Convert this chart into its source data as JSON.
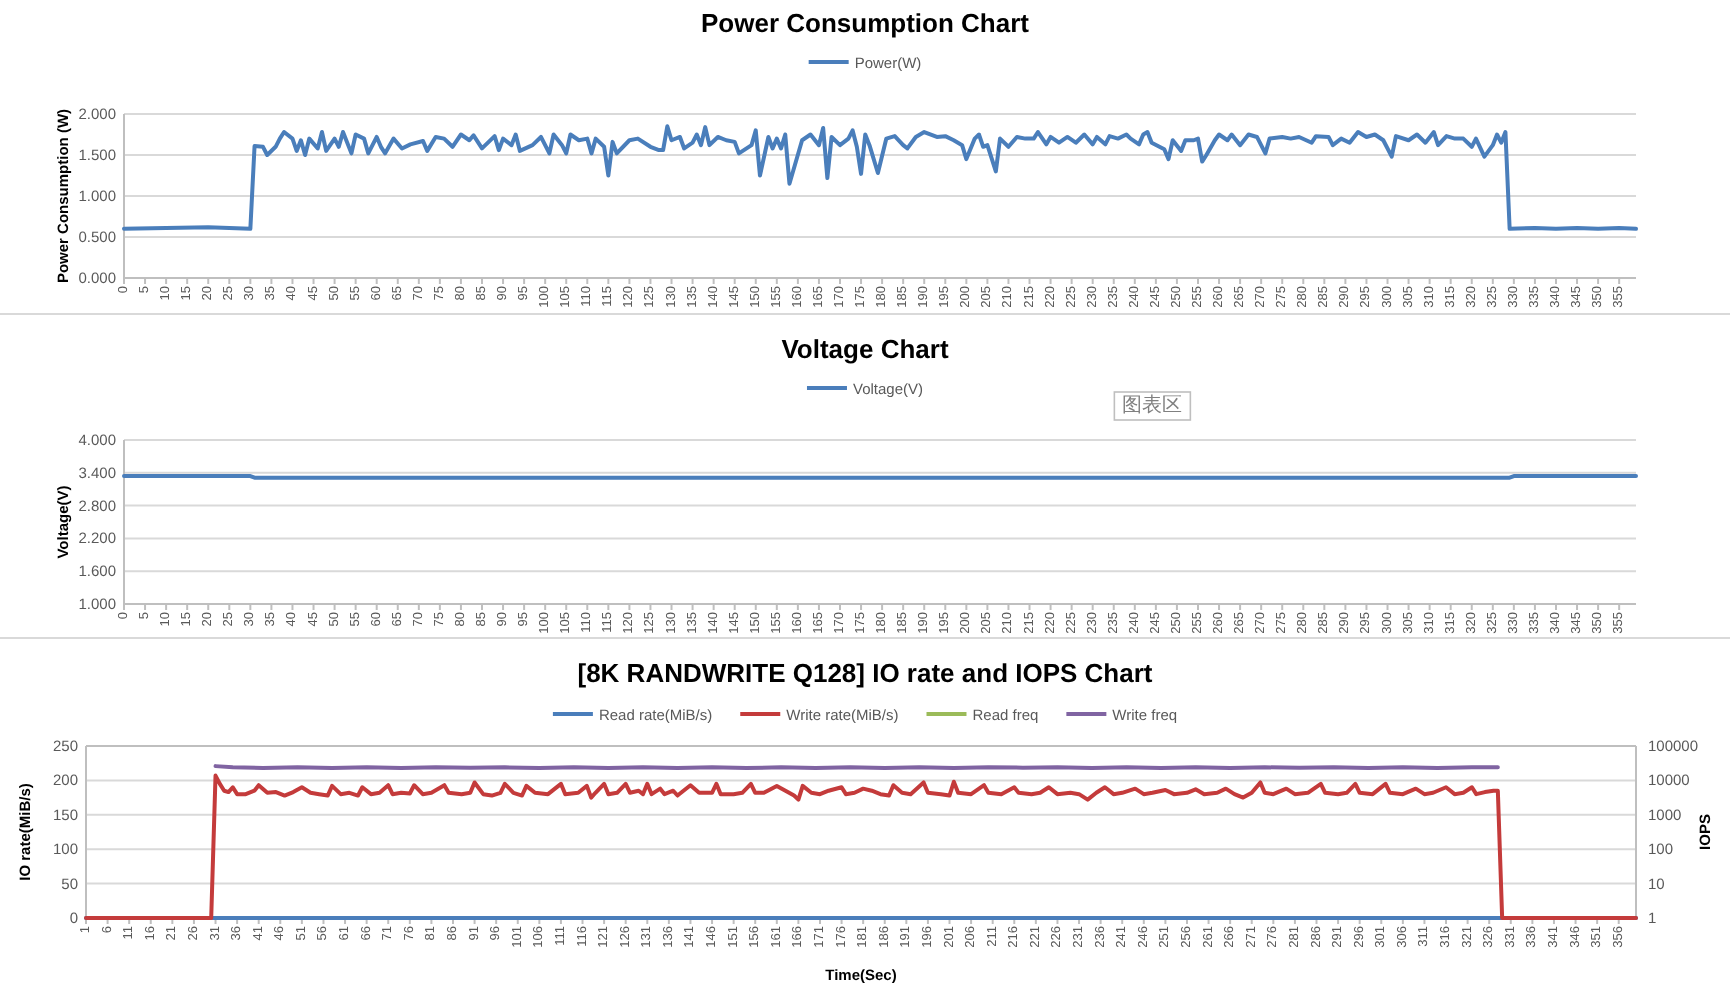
{
  "chart_data": [
    {
      "type": "line",
      "title": "Power Consumption Chart",
      "ylabel": "Power Consumption (W)",
      "legend": "top",
      "grid": "y",
      "xlim": [
        0,
        359
      ],
      "xticks": [
        0,
        5,
        10,
        15,
        20,
        25,
        30,
        35,
        40,
        45,
        50,
        55,
        60,
        65,
        70,
        75,
        80,
        85,
        90,
        95,
        100,
        105,
        110,
        115,
        120,
        125,
        130,
        135,
        140,
        145,
        150,
        155,
        160,
        165,
        170,
        175,
        180,
        185,
        190,
        195,
        200,
        205,
        210,
        215,
        220,
        225,
        230,
        235,
        240,
        245,
        250,
        255,
        260,
        265,
        270,
        275,
        280,
        285,
        290,
        295,
        300,
        305,
        310,
        315,
        320,
        325,
        330,
        335,
        340,
        345,
        350,
        355
      ],
      "ylim": [
        0,
        2
      ],
      "yticks": [
        {
          "value": 0,
          "label": "0.000"
        },
        {
          "value": 0.5,
          "label": "0.500"
        },
        {
          "value": 1,
          "label": "1.000"
        },
        {
          "value": 1.5,
          "label": "1.500"
        },
        {
          "value": 2,
          "label": "2.000"
        }
      ],
      "series": [
        {
          "name": "Power(W)",
          "color": "#4a7ebb",
          "x": [
            0,
            10,
            20,
            30,
            31,
            33,
            34,
            36,
            37,
            38,
            40,
            41,
            42,
            43,
            44,
            46,
            47,
            48,
            50,
            51,
            52,
            54,
            55,
            57,
            58,
            60,
            61,
            62,
            64,
            66,
            68,
            71,
            72,
            74,
            76,
            78,
            80,
            82,
            83,
            85,
            88,
            89,
            90,
            92,
            93,
            94,
            97,
            99,
            101,
            102,
            104,
            105,
            106,
            108,
            110,
            111,
            112,
            114,
            115,
            116,
            117,
            120,
            122,
            125,
            127,
            128,
            129,
            130,
            132,
            133,
            135,
            136,
            137,
            138,
            139,
            141,
            143,
            145,
            146,
            149,
            150,
            151,
            153,
            154,
            155,
            156,
            157,
            158,
            161,
            163,
            165,
            166,
            167,
            168,
            170,
            172,
            173,
            174,
            175,
            176,
            177,
            179,
            181,
            183,
            185,
            186,
            188,
            190,
            193,
            195,
            197,
            199,
            200,
            202,
            203,
            204,
            205,
            207,
            208,
            210,
            212,
            214,
            216,
            217,
            219,
            220,
            222,
            224,
            226,
            228,
            230,
            231,
            233,
            234,
            236,
            238,
            239,
            241,
            242,
            243,
            244,
            247,
            248,
            249,
            251,
            252,
            254,
            255,
            256,
            257,
            259,
            260,
            262,
            263,
            265,
            267,
            269,
            270,
            271,
            272,
            275,
            277,
            279,
            282,
            283,
            286,
            287,
            289,
            291,
            293,
            295,
            297,
            299,
            301,
            302,
            305,
            307,
            309,
            311,
            312,
            314,
            316,
            318,
            320,
            321,
            323,
            325,
            326,
            327,
            328,
            329,
            335,
            340,
            345,
            350,
            355,
            359
          ],
          "values": [
            0.6,
            0.61,
            0.62,
            0.6,
            1.61,
            1.6,
            1.5,
            1.6,
            1.7,
            1.78,
            1.7,
            1.55,
            1.68,
            1.5,
            1.7,
            1.58,
            1.78,
            1.55,
            1.7,
            1.6,
            1.78,
            1.52,
            1.75,
            1.7,
            1.52,
            1.72,
            1.6,
            1.52,
            1.7,
            1.58,
            1.63,
            1.67,
            1.55,
            1.72,
            1.7,
            1.6,
            1.75,
            1.68,
            1.74,
            1.58,
            1.73,
            1.56,
            1.7,
            1.62,
            1.75,
            1.55,
            1.62,
            1.72,
            1.52,
            1.75,
            1.62,
            1.52,
            1.75,
            1.68,
            1.7,
            1.52,
            1.7,
            1.6,
            1.25,
            1.66,
            1.52,
            1.68,
            1.7,
            1.6,
            1.56,
            1.56,
            1.85,
            1.68,
            1.72,
            1.58,
            1.65,
            1.75,
            1.62,
            1.84,
            1.62,
            1.72,
            1.68,
            1.66,
            1.52,
            1.62,
            1.8,
            1.25,
            1.72,
            1.58,
            1.7,
            1.58,
            1.75,
            1.15,
            1.68,
            1.75,
            1.62,
            1.83,
            1.22,
            1.72,
            1.62,
            1.7,
            1.8,
            1.6,
            1.27,
            1.75,
            1.62,
            1.28,
            1.7,
            1.73,
            1.62,
            1.58,
            1.72,
            1.78,
            1.72,
            1.73,
            1.68,
            1.62,
            1.45,
            1.7,
            1.75,
            1.6,
            1.62,
            1.3,
            1.7,
            1.6,
            1.72,
            1.7,
            1.7,
            1.78,
            1.63,
            1.72,
            1.65,
            1.72,
            1.65,
            1.75,
            1.63,
            1.72,
            1.63,
            1.73,
            1.7,
            1.75,
            1.7,
            1.63,
            1.75,
            1.78,
            1.65,
            1.57,
            1.45,
            1.68,
            1.55,
            1.68,
            1.68,
            1.7,
            1.42,
            1.5,
            1.68,
            1.75,
            1.68,
            1.75,
            1.62,
            1.75,
            1.72,
            1.62,
            1.52,
            1.7,
            1.72,
            1.7,
            1.72,
            1.65,
            1.73,
            1.72,
            1.62,
            1.7,
            1.65,
            1.78,
            1.72,
            1.75,
            1.68,
            1.48,
            1.73,
            1.68,
            1.75,
            1.65,
            1.78,
            1.62,
            1.73,
            1.7,
            1.7,
            1.6,
            1.7,
            1.48,
            1.62,
            1.75,
            1.65,
            1.78,
            0.6,
            0.61,
            0.6,
            0.61,
            0.6,
            0.61,
            0.6
          ]
        }
      ]
    },
    {
      "type": "line",
      "title": "Voltage Chart",
      "ylabel": "Voltage(V)",
      "legend": "top",
      "grid": "y",
      "annotations": [
        "图表区"
      ],
      "xlim": [
        0,
        359
      ],
      "xticks": [
        0,
        5,
        10,
        15,
        20,
        25,
        30,
        35,
        40,
        45,
        50,
        55,
        60,
        65,
        70,
        75,
        80,
        85,
        90,
        95,
        100,
        105,
        110,
        115,
        120,
        125,
        130,
        135,
        140,
        145,
        150,
        155,
        160,
        165,
        170,
        175,
        180,
        185,
        190,
        195,
        200,
        205,
        210,
        215,
        220,
        225,
        230,
        235,
        240,
        245,
        250,
        255,
        260,
        265,
        270,
        275,
        280,
        285,
        290,
        295,
        300,
        305,
        310,
        315,
        320,
        325,
        330,
        335,
        340,
        345,
        350,
        355
      ],
      "ylim": [
        1,
        4
      ],
      "yticks": [
        {
          "value": 1,
          "label": "1.000"
        },
        {
          "value": 1.6,
          "label": "1.600"
        },
        {
          "value": 2.2,
          "label": "2.200"
        },
        {
          "value": 2.8,
          "label": "2.800"
        },
        {
          "value": 3.4,
          "label": "3.400"
        },
        {
          "value": 4,
          "label": "4.000"
        }
      ],
      "series": [
        {
          "name": "Voltage(V)",
          "color": "#4a7ebb",
          "x": [
            0,
            30,
            31,
            329,
            330,
            359
          ],
          "values": [
            3.34,
            3.34,
            3.31,
            3.31,
            3.34,
            3.34
          ]
        }
      ]
    },
    {
      "type": "line",
      "title": "[8K RANDWRITE Q128] IO rate and IOPS Chart",
      "xlabel": "Time(Sec)",
      "ylabel": "IO rate(MiB/s)",
      "y2label": "IOPS",
      "legend": "top",
      "grid": "y",
      "log": "y2",
      "xlim": [
        1,
        360
      ],
      "xticks": [
        1,
        6,
        11,
        16,
        21,
        26,
        31,
        36,
        41,
        46,
        51,
        56,
        61,
        66,
        71,
        76,
        81,
        86,
        91,
        96,
        101,
        106,
        111,
        116,
        121,
        126,
        131,
        136,
        141,
        146,
        151,
        156,
        161,
        166,
        171,
        176,
        181,
        186,
        191,
        196,
        201,
        206,
        211,
        216,
        221,
        226,
        231,
        236,
        241,
        246,
        251,
        256,
        261,
        266,
        271,
        276,
        281,
        286,
        291,
        296,
        301,
        306,
        311,
        316,
        321,
        326,
        331,
        336,
        341,
        346,
        351,
        356
      ],
      "ylim": [
        0,
        250
      ],
      "yticks": [
        0,
        50,
        100,
        150,
        200,
        250
      ],
      "y2lim": [
        1,
        100000
      ],
      "y2ticks": [
        1,
        10,
        100,
        1000,
        10000,
        100000
      ],
      "series": [
        {
          "name": "Read rate(MiB/s)",
          "color": "#4a7ebb",
          "x": [
            1,
            360
          ],
          "values": [
            0,
            0
          ]
        },
        {
          "name": "Write rate(MiB/s)",
          "color": "#c43b3b",
          "x": [
            1,
            30,
            31,
            32,
            33,
            34,
            35,
            36,
            38,
            40,
            41,
            43,
            45,
            47,
            49,
            51,
            53,
            55,
            57,
            58,
            60,
            62,
            64,
            65,
            67,
            69,
            71,
            72,
            74,
            76,
            77,
            79,
            81,
            84,
            85,
            88,
            90,
            91,
            93,
            95,
            97,
            98,
            100,
            102,
            103,
            105,
            108,
            111,
            112,
            115,
            117,
            118,
            119,
            121,
            122,
            124,
            126,
            127,
            129,
            130,
            131,
            132,
            134,
            135,
            137,
            138,
            141,
            143,
            146,
            147,
            148,
            151,
            153,
            155,
            156,
            158,
            161,
            163,
            165,
            166,
            167,
            169,
            171,
            173,
            176,
            177,
            179,
            181,
            183,
            185,
            187,
            188,
            190,
            192,
            195,
            196,
            199,
            201,
            202,
            203,
            206,
            209,
            210,
            213,
            216,
            217,
            220,
            222,
            224,
            226,
            229,
            231,
            233,
            235,
            237,
            239,
            241,
            244,
            246,
            248,
            251,
            253,
            256,
            258,
            260,
            263,
            265,
            267,
            269,
            271,
            273,
            274,
            276,
            279,
            281,
            284,
            287,
            288,
            291,
            293,
            295,
            296,
            299,
            302,
            303,
            306,
            309,
            311,
            313,
            316,
            318,
            320,
            322,
            323,
            325,
            327,
            328,
            329,
            360
          ],
          "values": [
            0,
            0,
            207,
            195,
            185,
            183,
            190,
            180,
            180,
            185,
            193,
            182,
            183,
            178,
            183,
            190,
            182,
            180,
            178,
            192,
            180,
            182,
            178,
            190,
            180,
            182,
            193,
            180,
            182,
            181,
            193,
            180,
            182,
            193,
            182,
            180,
            182,
            197,
            180,
            178,
            182,
            195,
            182,
            178,
            192,
            182,
            180,
            195,
            180,
            182,
            192,
            175,
            182,
            195,
            180,
            182,
            195,
            182,
            185,
            180,
            195,
            180,
            188,
            180,
            185,
            178,
            193,
            182,
            182,
            195,
            180,
            180,
            182,
            195,
            182,
            182,
            192,
            185,
            178,
            172,
            192,
            182,
            180,
            185,
            190,
            180,
            182,
            188,
            185,
            180,
            178,
            193,
            182,
            180,
            197,
            182,
            180,
            178,
            198,
            182,
            180,
            193,
            182,
            180,
            190,
            182,
            180,
            182,
            190,
            180,
            182,
            180,
            172,
            182,
            190,
            180,
            182,
            188,
            180,
            182,
            186,
            180,
            182,
            187,
            180,
            182,
            188,
            180,
            175,
            182,
            197,
            182,
            180,
            188,
            180,
            182,
            195,
            182,
            180,
            182,
            195,
            182,
            180,
            195,
            182,
            180,
            188,
            180,
            182,
            190,
            180,
            182,
            190,
            180,
            183,
            185,
            185,
            0,
            0
          ]
        },
        {
          "name": "Read freq",
          "color": "#9bbb59",
          "axis": "y2"
        },
        {
          "name": "Write freq",
          "color": "#8064a2",
          "axis": "y2",
          "x": [
            31,
            35,
            42,
            50,
            58,
            66,
            74,
            82,
            90,
            98,
            106,
            114,
            122,
            130,
            138,
            146,
            154,
            162,
            170,
            178,
            186,
            194,
            202,
            210,
            218,
            226,
            234,
            242,
            250,
            258,
            266,
            274,
            282,
            290,
            298,
            306,
            314,
            322,
            328
          ],
          "values": [
            26000,
            24000,
            23000,
            24000,
            23000,
            24000,
            23000,
            24000,
            23500,
            24000,
            23000,
            24000,
            23000,
            24000,
            23000,
            24000,
            23000,
            24000,
            23000,
            24000,
            23000,
            24000,
            23000,
            24000,
            23500,
            24000,
            23000,
            24000,
            23000,
            24000,
            23000,
            24000,
            23500,
            24000,
            23000,
            24000,
            23000,
            24000,
            24000
          ]
        }
      ]
    }
  ]
}
